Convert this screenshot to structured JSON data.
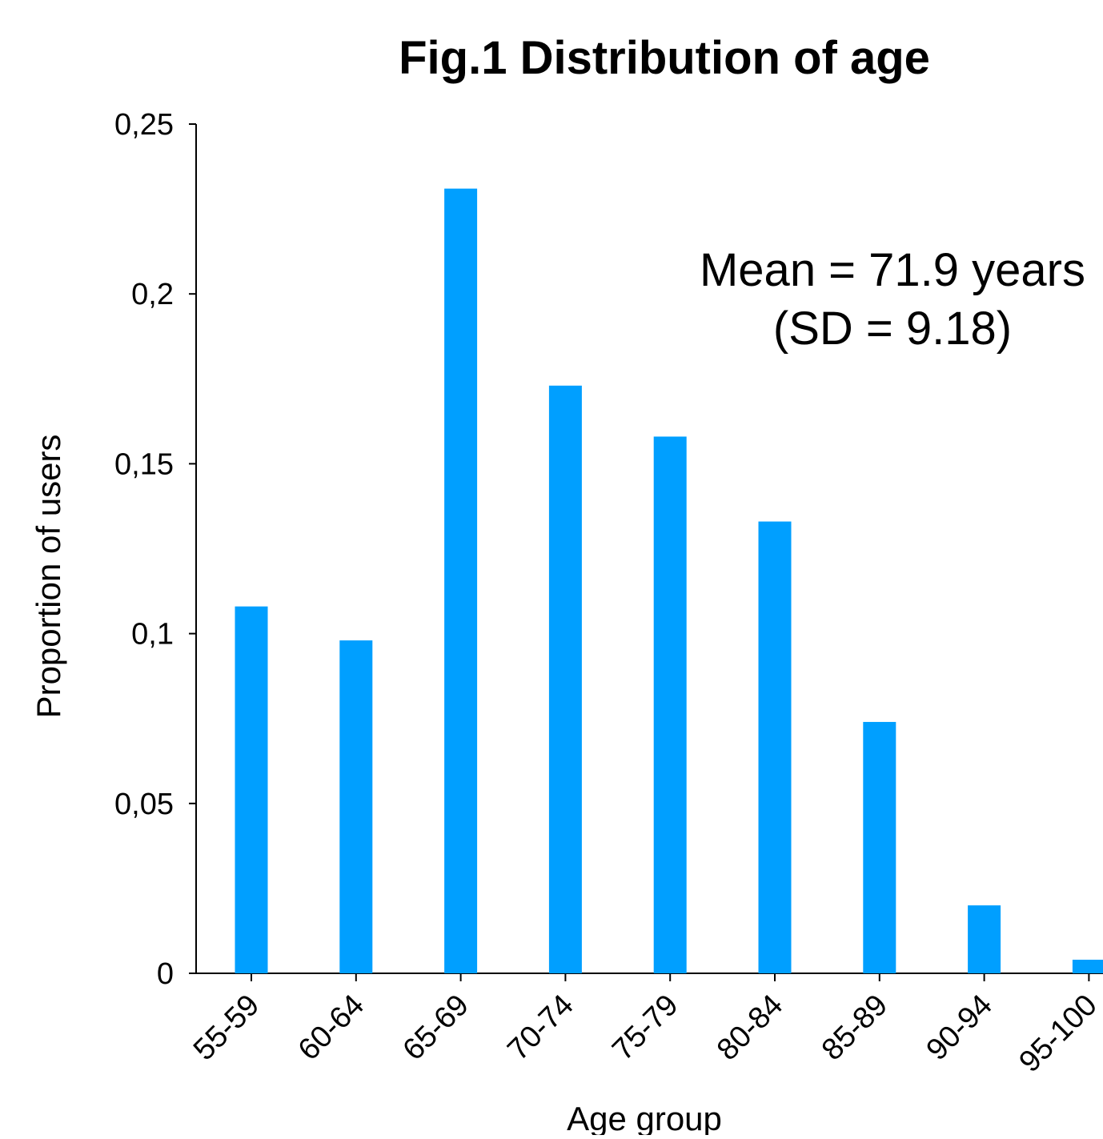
{
  "chart_data": {
    "type": "bar",
    "title": "Fig.1 Distribution of age",
    "xlabel": "Age group",
    "ylabel": "Proportion of users",
    "categories": [
      "55-59",
      "60-64",
      "65-69",
      "70-74",
      "75-79",
      "80-84",
      "85-89",
      "90-94",
      "95-100"
    ],
    "values": [
      0.108,
      0.098,
      0.231,
      0.173,
      0.158,
      0.133,
      0.074,
      0.02,
      0.004
    ],
    "ylim": [
      0,
      0.25
    ],
    "yticks": [
      0,
      0.05,
      0.1,
      0.15,
      0.2,
      0.25
    ],
    "ytick_labels": [
      "0",
      "0,05",
      "0,1",
      "0,15",
      "0,2",
      "0,25"
    ],
    "annotation": [
      "Mean = 71.9 years",
      "(SD = 9.18)"
    ],
    "bar_color": "#009FFF",
    "grid": false,
    "legend": "none"
  }
}
